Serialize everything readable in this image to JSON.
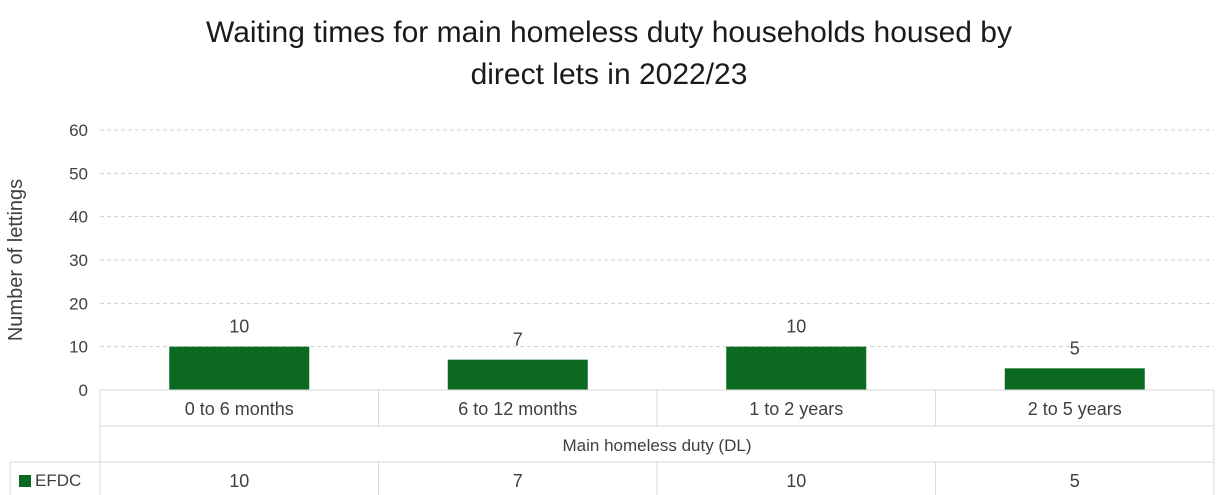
{
  "chart_data": {
    "type": "bar",
    "title_lines": [
      "Waiting times for main homeless duty households housed by",
      "direct lets in 2022/23"
    ],
    "ylabel": "Number of lettings",
    "ylim": [
      0,
      60
    ],
    "yticks": [
      0,
      10,
      20,
      30,
      40,
      50,
      60
    ],
    "grid": true,
    "group_label": "Main homeless duty (DL)",
    "categories": [
      "0 to 6 months",
      "6 to 12 months",
      "1 to 2 years",
      "2 to 5 years"
    ],
    "series": [
      {
        "name": "EFDC",
        "values": [
          10,
          7,
          10,
          5
        ],
        "color": "#0b6a1f"
      }
    ],
    "data_table": true
  }
}
